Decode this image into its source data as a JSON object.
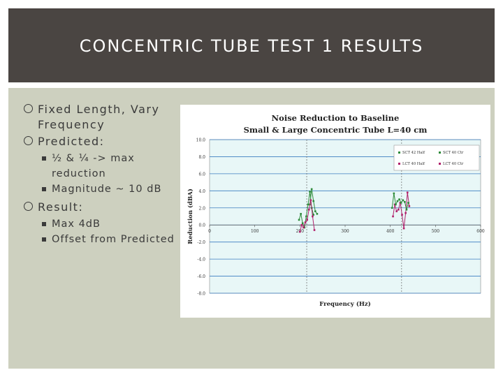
{
  "slide": {
    "title": "CONCENTRIC TUBE TEST 1 RESULTS",
    "bullets": [
      {
        "level": 1,
        "text": "Fixed Length, Vary Frequency"
      },
      {
        "level": 1,
        "text": "Predicted:"
      },
      {
        "level": 2,
        "text": "½ & ¼ -> max reduction"
      },
      {
        "level": 2,
        "text": "Magnitude ~ 10 dB"
      },
      {
        "level": 1,
        "text": "Result:"
      },
      {
        "level": 2,
        "text": "Max 4dB"
      },
      {
        "level": 2,
        "text": "Offset from Predicted"
      }
    ]
  },
  "colors": {
    "title_bg": "#4a4542",
    "content_bg": "#cdd0bf",
    "plot_bg": "#e8f7f7",
    "grid": "#3b7dc0"
  },
  "chart_data": {
    "type": "line",
    "title": "Noise Reduction to Baseline",
    "subtitle": "Small & Large Concentric Tube L=40 cm",
    "xlabel": "Frequency (Hz)",
    "ylabel": "Reduction (dBA)",
    "xlim": [
      0,
      600
    ],
    "ylim": [
      -8,
      10
    ],
    "xticks": [
      0,
      100,
      200,
      300,
      400,
      500,
      600
    ],
    "yticks": [
      10,
      8,
      6,
      4,
      2,
      0,
      -2,
      -4,
      -6,
      -8
    ],
    "ytick_labels": [
      "10.0",
      "8.0",
      "6.0",
      "4.0",
      "2.0",
      "0.0",
      "-2.0",
      "-4.0",
      "-6.0",
      "-8.0"
    ],
    "vlines": [
      215,
      425
    ],
    "grid": true,
    "legend_position": "top-right",
    "series": [
      {
        "name": "SCT 42 Half",
        "color": "#2e8b3a",
        "x": [
          198,
          202,
          206,
          210,
          214,
          218,
          222,
          226,
          230
        ],
        "y": [
          0.6,
          1.3,
          0.2,
          -0.3,
          1.0,
          2.4,
          3.9,
          2.0,
          1.2
        ]
      },
      {
        "name": "SCT 40 Ctr",
        "color": "#2e8b3a",
        "x": [
          222,
          226,
          230,
          234,
          238
        ],
        "y": [
          2.4,
          4.2,
          2.8,
          1.6,
          1.3
        ]
      },
      {
        "name": "LCT 40 Half",
        "color": "#b0206a",
        "x": [
          200,
          204,
          208,
          212,
          216,
          220,
          224,
          228,
          232
        ],
        "y": [
          -0.8,
          0.0,
          -0.3,
          0.3,
          0.6,
          1.8,
          2.9,
          1.0,
          -0.6
        ]
      },
      {
        "name": "LCT 40 Ctr",
        "color": "#b0206a",
        "x": [
          406,
          410,
          414,
          418,
          422,
          426,
          430,
          434,
          438,
          442
        ],
        "y": [
          1.0,
          2.4,
          1.6,
          1.8,
          2.6,
          1.2,
          -0.4,
          1.4,
          3.8,
          2.2
        ]
      },
      {
        "name": "",
        "color": "#2e8b3a",
        "x": [
          404,
          408,
          412,
          416,
          420,
          424,
          428,
          432,
          436,
          440
        ],
        "y": [
          2.0,
          3.7,
          2.4,
          2.8,
          3.0,
          2.6,
          2.9,
          2.7,
          1.8,
          2.6
        ]
      }
    ],
    "legend": [
      "SCT 42 Half",
      "SCT 40 Ctr",
      "LCT 40 Half",
      "LCT 40 Ctr"
    ]
  }
}
